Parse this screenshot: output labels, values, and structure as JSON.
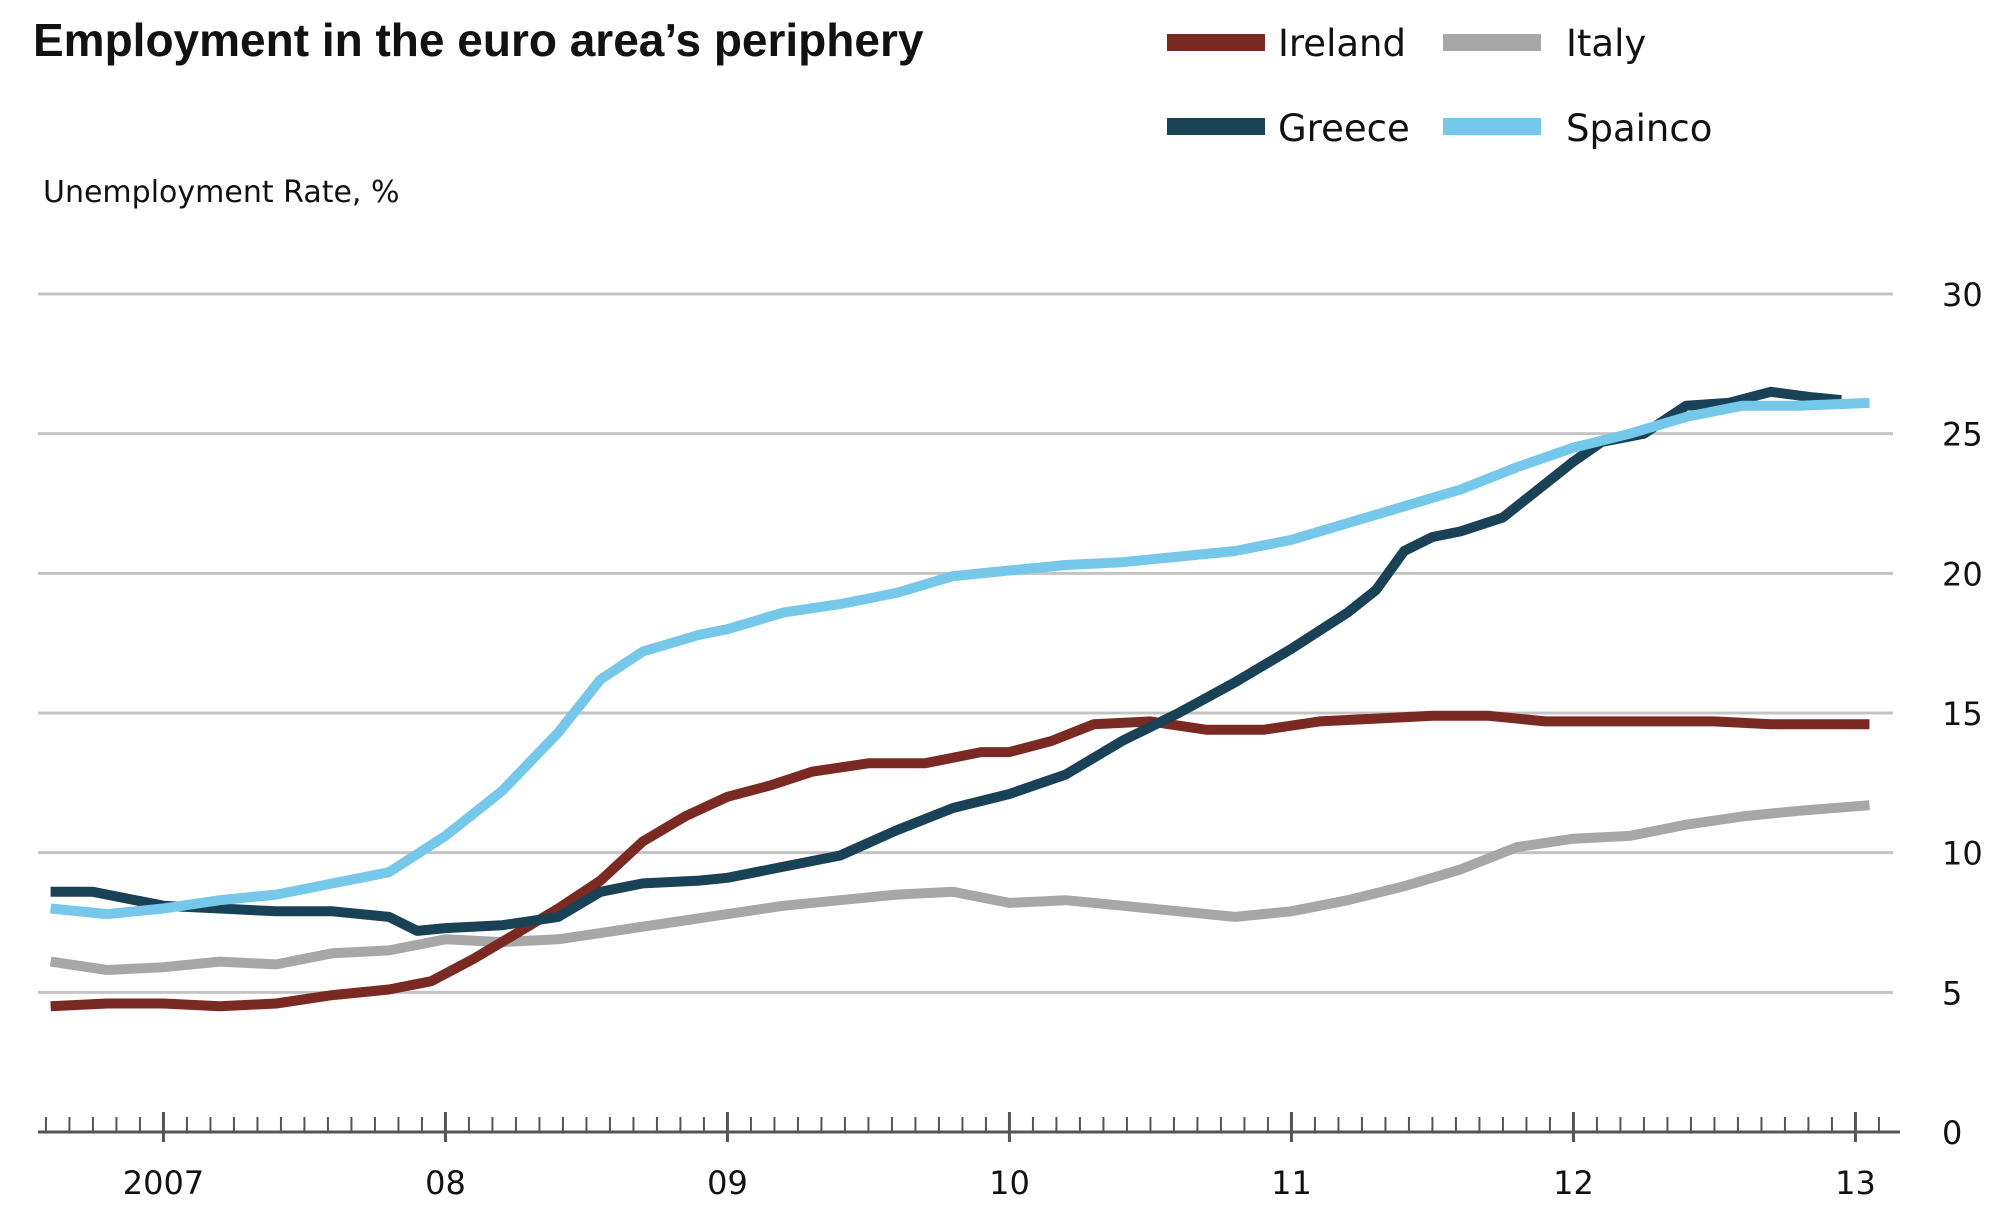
{
  "chart_data": {
    "type": "line",
    "title": "Employment in the euro area’s periphery",
    "ylabel": "Unemployment Rate, %",
    "ylim": [
      0,
      30
    ],
    "y_ticks": [
      "0",
      "5",
      "10",
      "15",
      "20",
      "25",
      "30"
    ],
    "x_tick_labels": [
      "2007",
      "08",
      "09",
      "10",
      "11",
      "12",
      "13"
    ],
    "x_tick_years": [
      2007,
      2008,
      2009,
      2010,
      2011,
      2012,
      2013
    ],
    "x_range": [
      2006.58,
      2013.08
    ],
    "grid": "horizontal",
    "legend_position": "top-right",
    "series": [
      {
        "name": "Ireland",
        "color": "#7a2a22",
        "x": [
          2006.6,
          2006.8,
          2007.0,
          2007.2,
          2007.4,
          2007.6,
          2007.8,
          2007.95,
          2008.1,
          2008.25,
          2008.4,
          2008.55,
          2008.7,
          2008.85,
          2009.0,
          2009.15,
          2009.3,
          2009.5,
          2009.7,
          2009.9,
          2010.0,
          2010.15,
          2010.3,
          2010.5,
          2010.7,
          2010.9,
          2011.1,
          2011.3,
          2011.5,
          2011.7,
          2011.9,
          2012.1,
          2012.3,
          2012.5,
          2012.7,
          2012.9,
          2013.05
        ],
        "y": [
          4.5,
          4.6,
          4.6,
          4.5,
          4.6,
          4.9,
          5.1,
          5.4,
          6.2,
          7.1,
          8.0,
          9.0,
          10.4,
          11.3,
          12.0,
          12.4,
          12.9,
          13.2,
          13.2,
          13.6,
          13.6,
          14.0,
          14.6,
          14.7,
          14.4,
          14.4,
          14.7,
          14.8,
          14.9,
          14.9,
          14.7,
          14.7,
          14.7,
          14.7,
          14.6,
          14.6,
          14.6
        ]
      },
      {
        "name": "Italy",
        "color": "#a7a7a7",
        "x": [
          2006.6,
          2006.8,
          2007.0,
          2007.2,
          2007.4,
          2007.6,
          2007.8,
          2008.0,
          2008.2,
          2008.4,
          2008.6,
          2008.8,
          2009.0,
          2009.2,
          2009.4,
          2009.6,
          2009.8,
          2010.0,
          2010.2,
          2010.4,
          2010.6,
          2010.8,
          2011.0,
          2011.2,
          2011.4,
          2011.6,
          2011.8,
          2012.0,
          2012.2,
          2012.4,
          2012.6,
          2012.8,
          2013.05
        ],
        "y": [
          6.1,
          5.8,
          5.9,
          6.1,
          6.0,
          6.4,
          6.5,
          6.9,
          6.8,
          6.9,
          7.2,
          7.5,
          7.8,
          8.1,
          8.3,
          8.5,
          8.6,
          8.2,
          8.3,
          8.1,
          7.9,
          7.7,
          7.9,
          8.3,
          8.8,
          9.4,
          10.2,
          10.5,
          10.6,
          11.0,
          11.3,
          11.5,
          11.7
        ]
      },
      {
        "name": "Greece",
        "color": "#1a4256",
        "x": [
          2006.6,
          2006.75,
          2006.9,
          2007.0,
          2007.2,
          2007.4,
          2007.6,
          2007.8,
          2007.9,
          2008.0,
          2008.2,
          2008.4,
          2008.55,
          2008.7,
          2008.9,
          2009.0,
          2009.2,
          2009.4,
          2009.6,
          2009.8,
          2010.0,
          2010.2,
          2010.4,
          2010.6,
          2010.8,
          2011.0,
          2011.2,
          2011.3,
          2011.4,
          2011.5,
          2011.6,
          2011.75,
          2011.9,
          2012.0,
          2012.1,
          2012.25,
          2012.4,
          2012.55,
          2012.7,
          2012.85,
          2012.95
        ],
        "y": [
          8.6,
          8.6,
          8.3,
          8.1,
          8.0,
          7.9,
          7.9,
          7.7,
          7.2,
          7.3,
          7.4,
          7.7,
          8.6,
          8.9,
          9.0,
          9.1,
          9.5,
          9.9,
          10.8,
          11.6,
          12.1,
          12.8,
          14.0,
          15.0,
          16.1,
          17.3,
          18.6,
          19.4,
          20.8,
          21.3,
          21.5,
          22.0,
          23.2,
          24.0,
          24.7,
          25.0,
          26.0,
          26.1,
          26.5,
          26.3,
          26.2
        ]
      },
      {
        "name": "Spainco",
        "color": "#75c8ea",
        "x": [
          2006.6,
          2006.8,
          2007.0,
          2007.2,
          2007.4,
          2007.6,
          2007.8,
          2008.0,
          2008.2,
          2008.4,
          2008.55,
          2008.7,
          2008.9,
          2009.0,
          2009.2,
          2009.4,
          2009.6,
          2009.8,
          2010.0,
          2010.2,
          2010.4,
          2010.6,
          2010.8,
          2011.0,
          2011.2,
          2011.4,
          2011.6,
          2011.8,
          2012.0,
          2012.2,
          2012.4,
          2012.6,
          2012.8,
          2013.05
        ],
        "y": [
          8.0,
          7.8,
          8.0,
          8.3,
          8.5,
          8.9,
          9.3,
          10.6,
          12.2,
          14.3,
          16.2,
          17.2,
          17.8,
          18.0,
          18.6,
          18.9,
          19.3,
          19.9,
          20.1,
          20.3,
          20.4,
          20.6,
          20.8,
          21.2,
          21.8,
          22.4,
          23.0,
          23.8,
          24.5,
          25.0,
          25.6,
          26.0,
          26.0,
          26.1
        ]
      }
    ]
  }
}
